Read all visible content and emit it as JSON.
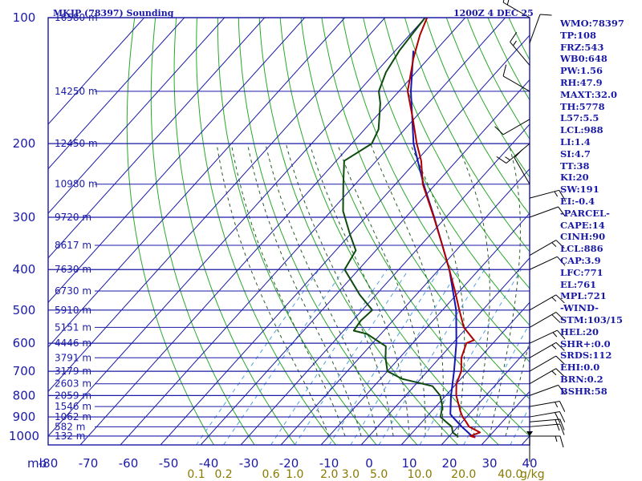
{
  "title": {
    "station": "MKJP (78397) Sounding",
    "time": "1200Z  4 DEC 25"
  },
  "stats": [
    "WMO:78397",
    "TP:108",
    "FRZ:543",
    "WB0:648",
    "PW:1.56",
    "RH:47.9",
    "MAXT:32.0",
    "TH:5778",
    "L57:5.5",
    "LCL:988",
    "LI:1.4",
    "SI:4.7",
    "TT:38",
    "KI:20",
    "SW:191",
    "EI:-0.4",
    "-PARCEL-",
    "CAPE:14",
    "CINH:90",
    "LCL:886",
    "CAP:3.9",
    "LFC:771",
    "EL:761",
    "MPL:721",
    "-WIND-",
    "STM:103/15",
    "HEL:20",
    "SHR+:0.0",
    "SRDS:112",
    "EHI:0.0",
    "BRN:0.2",
    "BSHR:58"
  ],
  "colors": {
    "isobar": "#1a1aa6",
    "isotherm": "#1a1aa6",
    "dry_adiabat": "#2aa82a",
    "moist_adiabat": "#2a5a2a",
    "mixing_ratio": "#4fa0e0",
    "temperature": "#b00000",
    "dewpoint": "#0f4a0f",
    "parcel": "#1515b0",
    "wind_barb": "#000000"
  },
  "chart_data": {
    "type": "skew-t",
    "title": "MKJP (78397) Sounding",
    "pressure_labels": [
      "100",
      "200",
      "300",
      "400",
      "500",
      "600",
      "700",
      "800",
      "900",
      "1000"
    ],
    "mb_label": "mb",
    "height_labels": [
      {
        "p": 100,
        "label": "16580 m"
      },
      {
        "p": 150,
        "label": "14250 m"
      },
      {
        "p": 200,
        "label": "12450 m"
      },
      {
        "p": 250,
        "label": "10980 m"
      },
      {
        "p": 300,
        "label": "9720 m"
      },
      {
        "p": 350,
        "label": "8617 m"
      },
      {
        "p": 400,
        "label": "7630 m"
      },
      {
        "p": 450,
        "label": "6730 m"
      },
      {
        "p": 500,
        "label": "5910 m"
      },
      {
        "p": 550,
        "label": "5151 m"
      },
      {
        "p": 600,
        "label": "4446 m"
      },
      {
        "p": 650,
        "label": "3791 m"
      },
      {
        "p": 700,
        "label": "3179 m"
      },
      {
        "p": 750,
        "label": "2603 m"
      },
      {
        "p": 800,
        "label": "2059 m"
      },
      {
        "p": 850,
        "label": "1546 m"
      },
      {
        "p": 900,
        "label": "1062 m"
      },
      {
        "p": 950,
        "label": "582 m"
      },
      {
        "p": 1000,
        "label": "132 m"
      }
    ],
    "temp_labels": [
      "-80",
      "-70",
      "-60",
      "-50",
      "-40",
      "-30",
      "-20",
      "-10",
      "0",
      "10",
      "20",
      "30",
      "40"
    ],
    "temp_values": [
      -80,
      -70,
      -60,
      -50,
      -40,
      -30,
      -20,
      -10,
      0,
      10,
      20,
      30,
      40
    ],
    "mixing_ratio_labels": [
      {
        "w": 0.1,
        "label": "0.1"
      },
      {
        "w": 0.2,
        "label": "0.2"
      },
      {
        "w": 0.6,
        "label": "0.6"
      },
      {
        "w": 1.0,
        "label": "1.0"
      },
      {
        "w": 2.0,
        "label": "2.0"
      },
      {
        "w": 3.0,
        "label": "3.0"
      },
      {
        "w": 5.0,
        "label": "5.0"
      },
      {
        "w": 10.0,
        "label": "10.0"
      },
      {
        "w": 20.0,
        "label": "20.0"
      },
      {
        "w": 40.0,
        "label": "40.0"
      }
    ],
    "mixing_ratio_unit": "g/kg",
    "pressure_range": [
      100,
      1050
    ],
    "temp_range": [
      -80,
      40
    ],
    "temperature": [
      [
        1008,
        26.8
      ],
      [
        1000,
        25.2
      ],
      [
        980,
        26.8
      ],
      [
        950,
        22.8
      ],
      [
        925,
        21.0
      ],
      [
        900,
        19.0
      ],
      [
        870,
        17.0
      ],
      [
        850,
        15.8
      ],
      [
        800,
        12.6
      ],
      [
        750,
        10.0
      ],
      [
        700,
        8.4
      ],
      [
        650,
        5.4
      ],
      [
        600,
        3.4
      ],
      [
        590,
        4.6
      ],
      [
        550,
        -0.8
      ],
      [
        500,
        -5.8
      ],
      [
        450,
        -11.2
      ],
      [
        400,
        -17.4
      ],
      [
        350,
        -24.6
      ],
      [
        300,
        -33.0
      ],
      [
        250,
        -43.2
      ],
      [
        220,
        -48.8
      ],
      [
        200,
        -53.8
      ],
      [
        175,
        -60.2
      ],
      [
        150,
        -67.8
      ],
      [
        125,
        -73.8
      ],
      [
        110,
        -77.4
      ],
      [
        100,
        -79.5
      ]
    ],
    "dewpoint": [
      [
        1008,
        22.4
      ],
      [
        1000,
        22.0
      ],
      [
        980,
        20.0
      ],
      [
        950,
        18.5
      ],
      [
        925,
        16.0
      ],
      [
        900,
        13.5
      ],
      [
        850,
        11.6
      ],
      [
        800,
        8.6
      ],
      [
        760,
        4.6
      ],
      [
        730,
        -4.6
      ],
      [
        700,
        -10.0
      ],
      [
        650,
        -13.5
      ],
      [
        610,
        -16.0
      ],
      [
        570,
        -23.5
      ],
      [
        560,
        -27.5
      ],
      [
        530,
        -28.0
      ],
      [
        500,
        -27.5
      ],
      [
        460,
        -34.0
      ],
      [
        400,
        -43.5
      ],
      [
        360,
        -45.0
      ],
      [
        330,
        -50.0
      ],
      [
        290,
        -57.0
      ],
      [
        250,
        -63.0
      ],
      [
        220,
        -68.0
      ],
      [
        200,
        -65.0
      ],
      [
        185,
        -66.5
      ],
      [
        160,
        -72.0
      ],
      [
        150,
        -75.0
      ],
      [
        135,
        -77.5
      ],
      [
        120,
        -79.0
      ],
      [
        100,
        -80.0
      ]
    ],
    "parcel": [
      [
        1000,
        25.6
      ],
      [
        950,
        21.0
      ],
      [
        900,
        16.5
      ],
      [
        886,
        15.3
      ],
      [
        800,
        11.3
      ],
      [
        771,
        10.0
      ],
      [
        700,
        6.6
      ],
      [
        600,
        0.9
      ],
      [
        500,
        -6.6
      ],
      [
        400,
        -17.4
      ],
      [
        300,
        -32.9
      ],
      [
        250,
        -43.0
      ],
      [
        200,
        -54.6
      ],
      [
        150,
        -67.0
      ],
      [
        120,
        -75.5
      ]
    ],
    "surface_marker_p": 1000,
    "wind_barbs": [
      {
        "p": 1000,
        "dir": 90,
        "spd": 15
      },
      {
        "p": 950,
        "dir": 85,
        "spd": 10
      },
      {
        "p": 925,
        "dir": 85,
        "spd": 20
      },
      {
        "p": 900,
        "dir": 80,
        "spd": 20
      },
      {
        "p": 850,
        "dir": 80,
        "spd": 15
      },
      {
        "p": 800,
        "dir": 70,
        "spd": 10
      },
      {
        "p": 750,
        "dir": 60,
        "spd": 15
      },
      {
        "p": 700,
        "dir": 60,
        "spd": 10
      },
      {
        "p": 650,
        "dir": 60,
        "spd": 15
      },
      {
        "p": 600,
        "dir": 65,
        "spd": 15
      },
      {
        "p": 550,
        "dir": 60,
        "spd": 20
      },
      {
        "p": 500,
        "dir": 60,
        "spd": 15
      },
      {
        "p": 400,
        "dir": 65,
        "spd": 10
      },
      {
        "p": 370,
        "dir": 60,
        "spd": 15
      },
      {
        "p": 300,
        "dir": 70,
        "spd": 10
      },
      {
        "p": 270,
        "dir": 75,
        "spd": 15
      },
      {
        "p": 250,
        "dir": 330,
        "spd": 10
      },
      {
        "p": 200,
        "dir": 230,
        "spd": 15
      },
      {
        "p": 175,
        "dir": 240,
        "spd": 10
      },
      {
        "p": 150,
        "dir": 300,
        "spd": 10
      },
      {
        "p": 130,
        "dir": 320,
        "spd": 15
      },
      {
        "p": 115,
        "dir": 20,
        "spd": 10
      },
      {
        "p": 100,
        "dir": 300,
        "spd": 15
      }
    ]
  }
}
